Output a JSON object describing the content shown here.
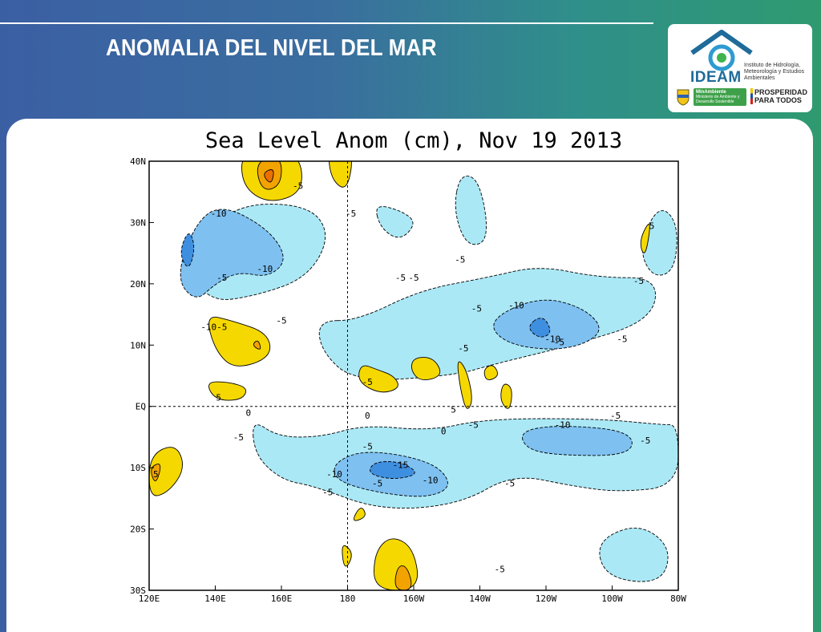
{
  "slide": {
    "title": "ANOMALIA DEL NIVEL DEL MAR"
  },
  "logo": {
    "name": "IDEAM",
    "subtitle": "Instituto de Hidrología, Meteorología y Estudios Ambientales",
    "ministry": "MinAmbiente",
    "ministry_detail": "Ministerio de Ambiente y Desarrollo Sostenible",
    "slogan_line1": "PROSPERIDAD",
    "slogan_line2": "PARA TODOS"
  },
  "colors": {
    "neg5": "#abe8f5",
    "neg10": "#7ec0f0",
    "neg15": "#3f8fe0",
    "pos5": "#f5d800",
    "pos10": "#f2a300",
    "pos15": "#ec7000",
    "contour": "#000000"
  },
  "chart_data": {
    "type": "heatmap",
    "title": "Sea Level Anom (cm), Nov 19 2013",
    "xlabel": "",
    "ylabel": "",
    "x_ticks": [
      "120E",
      "140E",
      "160E",
      "180",
      "160W",
      "140W",
      "120W",
      "100W",
      "80W"
    ],
    "y_ticks": [
      "40N",
      "30N",
      "20N",
      "10N",
      "EQ",
      "10S",
      "20S",
      "30S"
    ],
    "xlim": [
      120,
      280
    ],
    "ylim": [
      -30,
      40
    ],
    "reference_lines": [
      {
        "axis": "x",
        "value": 180
      },
      {
        "axis": "y",
        "value": 0
      }
    ],
    "contour_levels": [
      -15,
      -10,
      -5,
      0,
      5,
      10,
      15
    ],
    "contour_labels": [
      {
        "lon": 141,
        "lat": 31.5,
        "text": "-10"
      },
      {
        "lon": 155,
        "lat": 22.5,
        "text": "-10"
      },
      {
        "lon": 138,
        "lat": 13,
        "text": "-10"
      },
      {
        "lon": 142,
        "lat": 21,
        "text": "-5"
      },
      {
        "lon": 142,
        "lat": 13,
        "text": "-5"
      },
      {
        "lon": 165,
        "lat": 36,
        "text": "-5"
      },
      {
        "lon": 181,
        "lat": 31.5,
        "text": "-5"
      },
      {
        "lon": 160,
        "lat": 14,
        "text": "-5"
      },
      {
        "lon": 141,
        "lat": 1.5,
        "text": "5"
      },
      {
        "lon": 196,
        "lat": 21,
        "text": "-5"
      },
      {
        "lon": 200,
        "lat": 21,
        "text": "-5"
      },
      {
        "lon": 214,
        "lat": 24,
        "text": "-5"
      },
      {
        "lon": 219,
        "lat": 16,
        "text": "-5"
      },
      {
        "lon": 231,
        "lat": 16.5,
        "text": "-10"
      },
      {
        "lon": 242,
        "lat": 11,
        "text": "-10"
      },
      {
        "lon": 244,
        "lat": 10.5,
        "text": "-5"
      },
      {
        "lon": 215,
        "lat": 9.5,
        "text": "-5"
      },
      {
        "lon": 263,
        "lat": 11,
        "text": "-5"
      },
      {
        "lon": 268,
        "lat": 20.5,
        "text": "-5"
      },
      {
        "lon": 186,
        "lat": 4,
        "text": "-5"
      },
      {
        "lon": 212,
        "lat": -0.5,
        "text": "5"
      },
      {
        "lon": 150,
        "lat": -1,
        "text": "0"
      },
      {
        "lon": 147,
        "lat": -5,
        "text": "-5"
      },
      {
        "lon": 186,
        "lat": -1.5,
        "text": "0"
      },
      {
        "lon": 209,
        "lat": -4,
        "text": "0"
      },
      {
        "lon": 218,
        "lat": -3,
        "text": "-5"
      },
      {
        "lon": 245,
        "lat": -3,
        "text": "-10"
      },
      {
        "lon": 261,
        "lat": -1.5,
        "text": "-5"
      },
      {
        "lon": 270,
        "lat": -5.5,
        "text": "-5"
      },
      {
        "lon": 196,
        "lat": -9.5,
        "text": "-15"
      },
      {
        "lon": 186,
        "lat": -6.5,
        "text": "-5"
      },
      {
        "lon": 176,
        "lat": -11,
        "text": "-10"
      },
      {
        "lon": 205,
        "lat": -12,
        "text": "-10"
      },
      {
        "lon": 189,
        "lat": -12.5,
        "text": "-5"
      },
      {
        "lon": 229,
        "lat": -12.5,
        "text": "-5"
      },
      {
        "lon": 122,
        "lat": -11,
        "text": "5"
      },
      {
        "lon": 174,
        "lat": -14,
        "text": "-5"
      },
      {
        "lon": 226,
        "lat": -26.5,
        "text": "-5"
      },
      {
        "lon": 272,
        "lat": 29.5,
        "text": "5"
      }
    ],
    "anomaly_regions": [
      {
        "level": -5,
        "points": [
          [
            130,
            24
          ],
          [
            145,
            33
          ],
          [
            168,
            33
          ],
          [
            175,
            28
          ],
          [
            168,
            21
          ],
          [
            152,
            18
          ],
          [
            138,
            17
          ]
        ]
      },
      {
        "level": -10,
        "points": [
          [
            128,
            21
          ],
          [
            134,
            30
          ],
          [
            142,
            33
          ],
          [
            156,
            29
          ],
          [
            162,
            24
          ],
          [
            156,
            21
          ],
          [
            147,
            22
          ],
          [
            140,
            20
          ],
          [
            134,
            17
          ]
        ]
      },
      {
        "level": -15,
        "points": [
          [
            129,
            25
          ],
          [
            132,
            29
          ],
          [
            134,
            26
          ],
          [
            132,
            22
          ]
        ]
      },
      {
        "level": -5,
        "points": [
          [
            171,
            14
          ],
          [
            172,
            9
          ],
          [
            182,
            4
          ],
          [
            212,
            5
          ],
          [
            225,
            7
          ],
          [
            248,
            10
          ],
          [
            272,
            14
          ],
          [
            274,
            21
          ],
          [
            256,
            21
          ],
          [
            238,
            23
          ],
          [
            222,
            21
          ],
          [
            202,
            19
          ],
          [
            183,
            14
          ]
        ]
      },
      {
        "level": -10,
        "points": [
          [
            222,
            14
          ],
          [
            228,
            10
          ],
          [
            246,
            9
          ],
          [
            258,
            12
          ],
          [
            252,
            16
          ],
          [
            238,
            18
          ]
        ]
      },
      {
        "level": -15,
        "points": [
          [
            234,
            13
          ],
          [
            238,
            11
          ],
          [
            242,
            12
          ],
          [
            239,
            15
          ]
        ]
      },
      {
        "level": -5,
        "points": [
          [
            212,
            32
          ],
          [
            216,
            26
          ],
          [
            223,
            27
          ],
          [
            220,
            37
          ],
          [
            214,
            38
          ]
        ]
      },
      {
        "level": -5,
        "points": [
          [
            188,
            33
          ],
          [
            196,
            32
          ],
          [
            201,
            30
          ],
          [
            196,
            27
          ],
          [
            190,
            29
          ]
        ]
      },
      {
        "level": -5,
        "points": [
          [
            151,
            -2
          ],
          [
            159,
            -5
          ],
          [
            172,
            -5
          ],
          [
            185,
            -3
          ],
          [
            205,
            -4
          ],
          [
            222,
            -2
          ],
          [
            256,
            -2
          ],
          [
            275,
            -3
          ],
          [
            280,
            -3
          ],
          [
            280,
            -13
          ],
          [
            262,
            -14
          ],
          [
            248,
            -13
          ],
          [
            230,
            -11
          ],
          [
            214,
            -16
          ],
          [
            190,
            -17
          ],
          [
            170,
            -13
          ],
          [
            160,
            -12
          ],
          [
            152,
            -8
          ]
        ]
      },
      {
        "level": -10,
        "points": [
          [
            176,
            -9
          ],
          [
            186,
            -7
          ],
          [
            206,
            -9
          ],
          [
            212,
            -13
          ],
          [
            204,
            -15
          ],
          [
            188,
            -14
          ],
          [
            176,
            -12
          ]
        ]
      },
      {
        "level": -15,
        "points": [
          [
            188,
            -9
          ],
          [
            196,
            -9
          ],
          [
            202,
            -11
          ],
          [
            194,
            -12
          ],
          [
            186,
            -11
          ]
        ]
      },
      {
        "level": -10,
        "points": [
          [
            232,
            -4
          ],
          [
            244,
            -3
          ],
          [
            266,
            -4
          ],
          [
            266,
            -8
          ],
          [
            244,
            -8
          ],
          [
            234,
            -7
          ]
        ]
      },
      {
        "level": -5,
        "points": [
          [
            255,
            -22
          ],
          [
            268,
            -19
          ],
          [
            278,
            -23
          ],
          [
            275,
            -29
          ],
          [
            258,
            -28
          ]
        ]
      },
      {
        "level": -5,
        "points": [
          [
            268,
            26
          ],
          [
            274,
            33
          ],
          [
            280,
            30
          ],
          [
            279,
            22
          ],
          [
            272,
            21
          ]
        ]
      },
      {
        "level": 5,
        "points": [
          [
            137,
            15
          ],
          [
            145,
            14
          ],
          [
            156,
            12
          ],
          [
            157,
            8
          ],
          [
            146,
            6
          ],
          [
            140,
            9
          ]
        ]
      },
      {
        "level": 10,
        "points": [
          [
            151,
            10
          ],
          [
            153,
            11
          ],
          [
            154,
            9
          ]
        ]
      },
      {
        "level": 5,
        "points": [
          [
            184,
            7
          ],
          [
            189,
            6
          ],
          [
            194,
            5
          ],
          [
            196,
            3
          ],
          [
            190,
            2
          ],
          [
            183,
            4
          ]
        ]
      },
      {
        "level": 5,
        "points": [
          [
            200,
            8
          ],
          [
            206,
            8
          ],
          [
            209,
            5
          ],
          [
            202,
            4
          ],
          [
            199,
            6
          ]
        ]
      },
      {
        "level": 5,
        "points": [
          [
            213,
            8
          ],
          [
            216,
            6
          ],
          [
            218,
            1
          ],
          [
            216,
            -1
          ],
          [
            214,
            3
          ]
        ]
      },
      {
        "level": 5,
        "points": [
          [
            221,
            6
          ],
          [
            224,
            7
          ],
          [
            226,
            5
          ],
          [
            222,
            4
          ]
        ]
      },
      {
        "level": 5,
        "points": [
          [
            227,
            4
          ],
          [
            230,
            3
          ],
          [
            229,
            -1
          ],
          [
            226,
            1
          ]
        ]
      },
      {
        "level": 5,
        "points": [
          [
            137,
            4
          ],
          [
            144,
            4
          ],
          [
            150,
            3
          ],
          [
            148,
            1
          ],
          [
            140,
            1
          ]
        ]
      },
      {
        "level": 5,
        "points": [
          [
            120,
            -8
          ],
          [
            128,
            -6
          ],
          [
            131,
            -10
          ],
          [
            126,
            -14
          ],
          [
            120,
            -15
          ]
        ]
      },
      {
        "level": 10,
        "points": [
          [
            120,
            -10
          ],
          [
            124,
            -9
          ],
          [
            122,
            -13
          ]
        ]
      },
      {
        "level": 5,
        "points": [
          [
            148,
            42
          ],
          [
            165,
            42
          ],
          [
            167,
            35
          ],
          [
            156,
            33
          ],
          [
            148,
            36
          ]
        ]
      },
      {
        "level": 10,
        "points": [
          [
            152,
            40
          ],
          [
            160,
            41
          ],
          [
            160,
            36
          ],
          [
            154,
            35
          ]
        ]
      },
      {
        "level": 15,
        "points": [
          [
            154,
            38
          ],
          [
            158,
            39
          ],
          [
            157,
            36
          ]
        ]
      },
      {
        "level": 5,
        "points": [
          [
            174,
            42
          ],
          [
            182,
            42
          ],
          [
            180,
            35
          ],
          [
            175,
            37
          ]
        ]
      },
      {
        "level": 5,
        "points": [
          [
            188,
            -30
          ],
          [
            202,
            -30
          ],
          [
            200,
            -23
          ],
          [
            193,
            -21
          ],
          [
            188,
            -24
          ]
        ]
      },
      {
        "level": 10,
        "points": [
          [
            194,
            -30
          ],
          [
            200,
            -30
          ],
          [
            198,
            -26
          ],
          [
            195,
            -26
          ]
        ]
      },
      {
        "level": 5,
        "points": [
          [
            181,
            -19
          ],
          [
            186,
            -18
          ],
          [
            184,
            -16
          ]
        ]
      },
      {
        "level": 5,
        "points": [
          [
            179,
            -27
          ],
          [
            182,
            -24
          ],
          [
            178,
            -22
          ]
        ]
      },
      {
        "level": 5,
        "points": [
          [
            268,
            27
          ],
          [
            272,
            31
          ],
          [
            270,
            24
          ]
        ]
      }
    ]
  }
}
